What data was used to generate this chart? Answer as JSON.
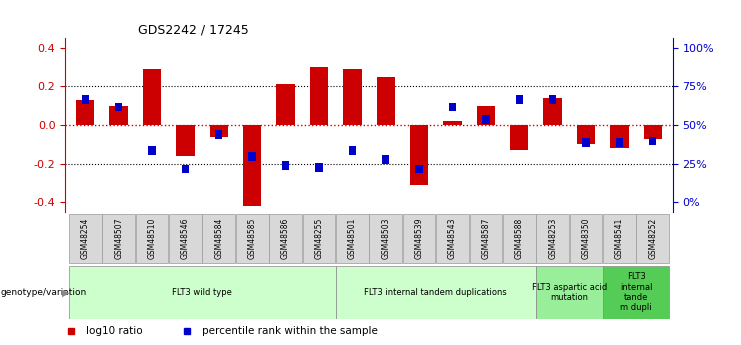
{
  "title": "GDS2242 / 17245",
  "samples": [
    "GSM48254",
    "GSM48507",
    "GSM48510",
    "GSM48546",
    "GSM48584",
    "GSM48585",
    "GSM48586",
    "GSM48255",
    "GSM48501",
    "GSM48503",
    "GSM48539",
    "GSM48543",
    "GSM48587",
    "GSM48588",
    "GSM48253",
    "GSM48350",
    "GSM48541",
    "GSM48252"
  ],
  "log10_ratio": [
    0.13,
    0.1,
    0.29,
    -0.16,
    -0.06,
    -0.42,
    0.21,
    0.3,
    0.29,
    0.25,
    -0.31,
    0.02,
    0.1,
    -0.13,
    0.14,
    -0.1,
    -0.12,
    -0.07
  ],
  "percentile_rank": [
    0.65,
    0.6,
    0.32,
    0.2,
    0.42,
    0.28,
    0.22,
    0.21,
    0.32,
    0.26,
    0.2,
    0.6,
    0.52,
    0.65,
    0.65,
    0.37,
    0.37,
    0.38
  ],
  "red": "#cc0000",
  "blue": "#0000cc",
  "ylim": [
    -0.45,
    0.45
  ],
  "yticks_left": [
    -0.4,
    -0.2,
    0.0,
    0.2,
    0.4
  ],
  "yticks_right_labels": [
    "0%",
    "25%",
    "50%",
    "75%",
    "100%"
  ],
  "yticks_right_vals": [
    0.0,
    0.25,
    0.5,
    0.75,
    1.0
  ],
  "groups": [
    {
      "label": "FLT3 wild type",
      "start": 0,
      "end": 8,
      "color": "#ccffcc"
    },
    {
      "label": "FLT3 internal tandem duplications",
      "start": 8,
      "end": 14,
      "color": "#ccffcc"
    },
    {
      "label": "FLT3 aspartic acid\nmutation",
      "start": 14,
      "end": 16,
      "color": "#99ee99"
    },
    {
      "label": "FLT3\ninternal\ntande\nm dupli",
      "start": 16,
      "end": 18,
      "color": "#55cc55"
    }
  ],
  "legend_red_label": "log10 ratio",
  "legend_blue_label": "percentile rank within the sample",
  "genotype_label": "genotype/variation"
}
